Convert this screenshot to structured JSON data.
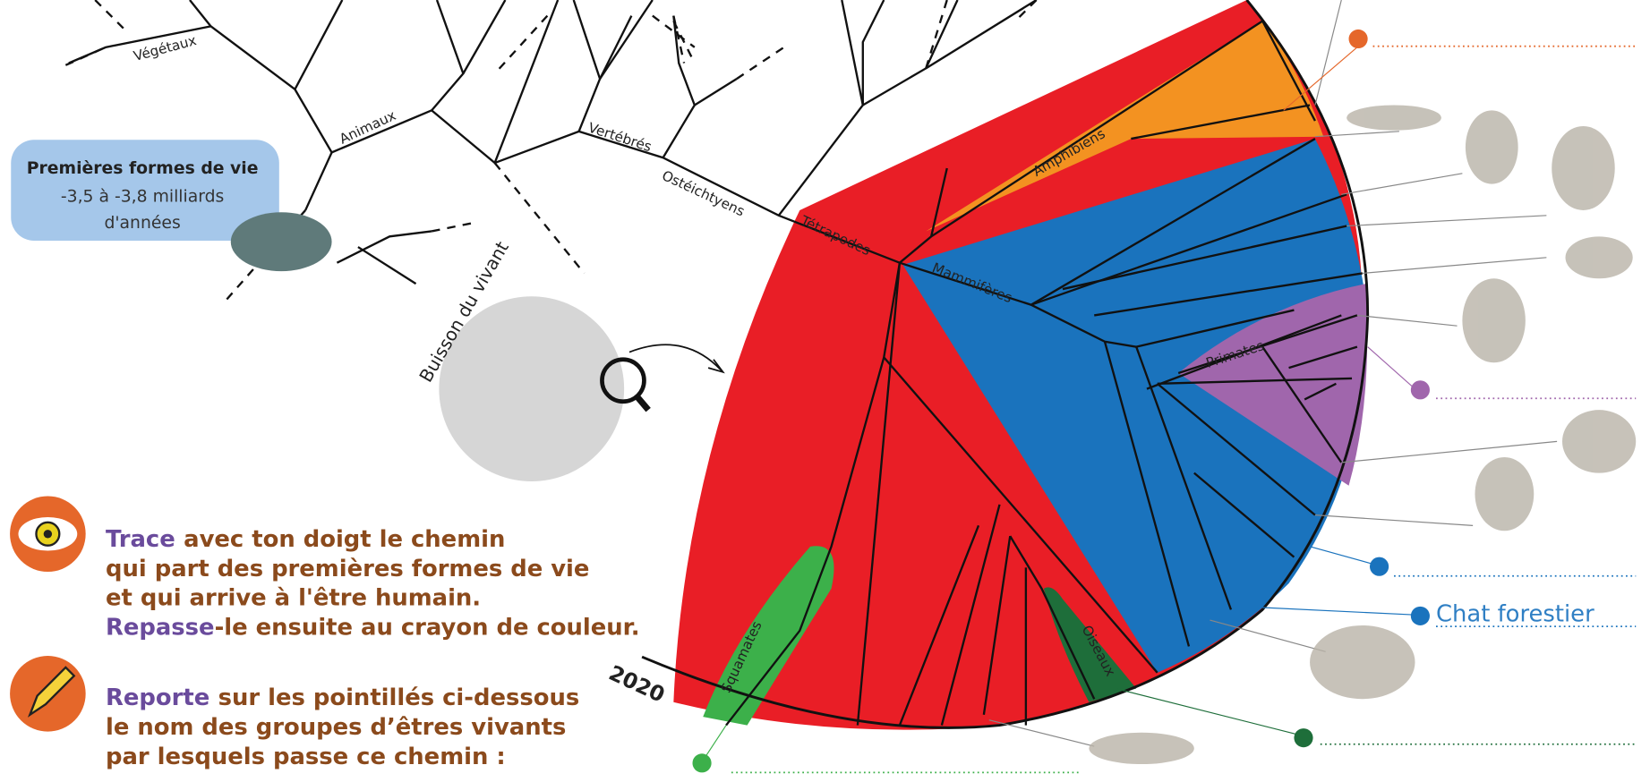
{
  "info_box": {
    "title": "Premières formes de vie",
    "lines": [
      "-3,5 à -3,8 milliards",
      "d'années"
    ]
  },
  "groups": [
    "Végétaux",
    "Animaux",
    "Vertébrés",
    "Ostéichtyens",
    "Tétrapodes",
    "Amphibiens",
    "Mammifères",
    "Primates",
    "Squamates",
    "Oiseaux"
  ],
  "bush_label": "Buisson du vivant",
  "year": "2020",
  "example_answer": "Chat forestier",
  "instructions": [
    {
      "verb": "Trace",
      "rest": "avec ton doigt le chemin"
    },
    "qui part des premières formes de vie",
    "et qui arrive à l'être humain.",
    {
      "verb": "Repasse",
      "rest": "-le ensuite au crayon de couleur."
    },
    {
      "verb": "Reporte",
      "rest": "sur les pointillés ci-dessous"
    },
    "le nom des groupes d’êtres vivants",
    "par lesquels passe ce chemin :"
  ]
}
